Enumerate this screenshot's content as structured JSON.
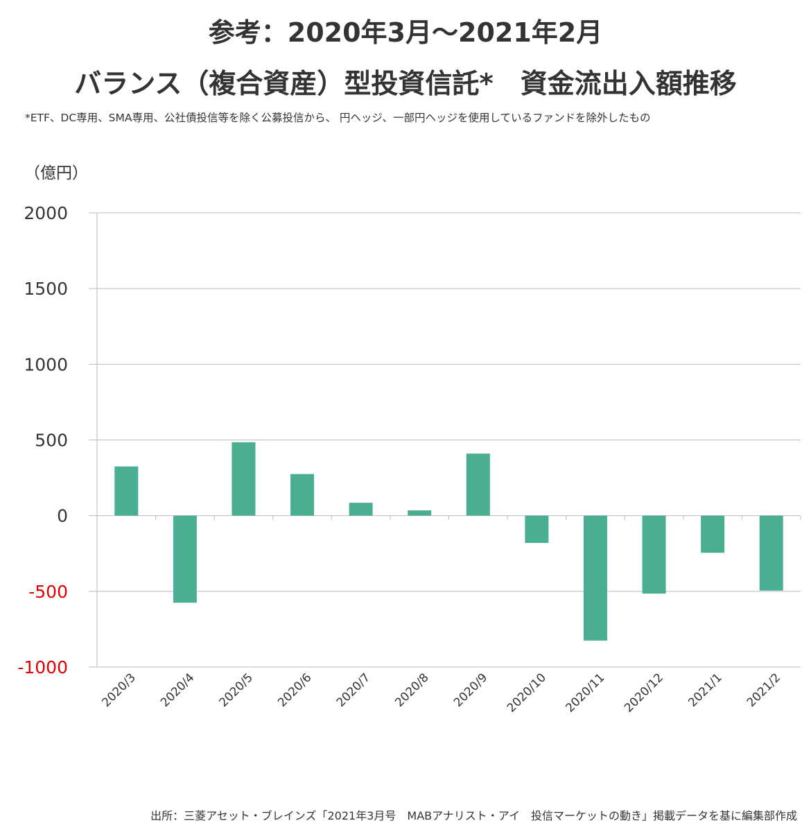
{
  "header": {
    "title_line1": "参考：2020年3月～2021年2月",
    "title_line2": "バランス（複合資産）型投資信託*　資金流出入額推移",
    "note": "*ETF、DC専用、SMA専用、公社債投信等を除く公募投信から、 円ヘッジ、一部円ヘッジを使用しているファンドを除外したもの"
  },
  "footer": {
    "source": "出所：三菱アセット・ブレインズ「2021年3月号　MABアナリスト・アイ　投信マーケットの動き」掲載データを基に編集部作成"
  },
  "colors": {
    "bar": "#4aae92",
    "negative_tick": "#e00000",
    "grid": "#bbbbbb",
    "text": "#333333"
  },
  "chart_data": {
    "type": "bar",
    "ylabel": "（億円）",
    "categories": [
      "2020/3",
      "2020/4",
      "2020/5",
      "2020/6",
      "2020/7",
      "2020/8",
      "2020/9",
      "2020/10",
      "2020/11",
      "2020/12",
      "2021/1",
      "2021/2"
    ],
    "values": [
      325,
      -575,
      485,
      275,
      85,
      35,
      410,
      -180,
      -825,
      -515,
      -245,
      -495
    ],
    "ylim": [
      -1000,
      2000
    ],
    "yticks": [
      2000,
      1500,
      1000,
      500,
      0,
      -500,
      -1000
    ],
    "ytick_labels": [
      "2000",
      "1500",
      "1000",
      "500",
      "0",
      "-500",
      "-1000"
    ],
    "negative_ticks_red": true,
    "grid": true,
    "legend": "none"
  }
}
